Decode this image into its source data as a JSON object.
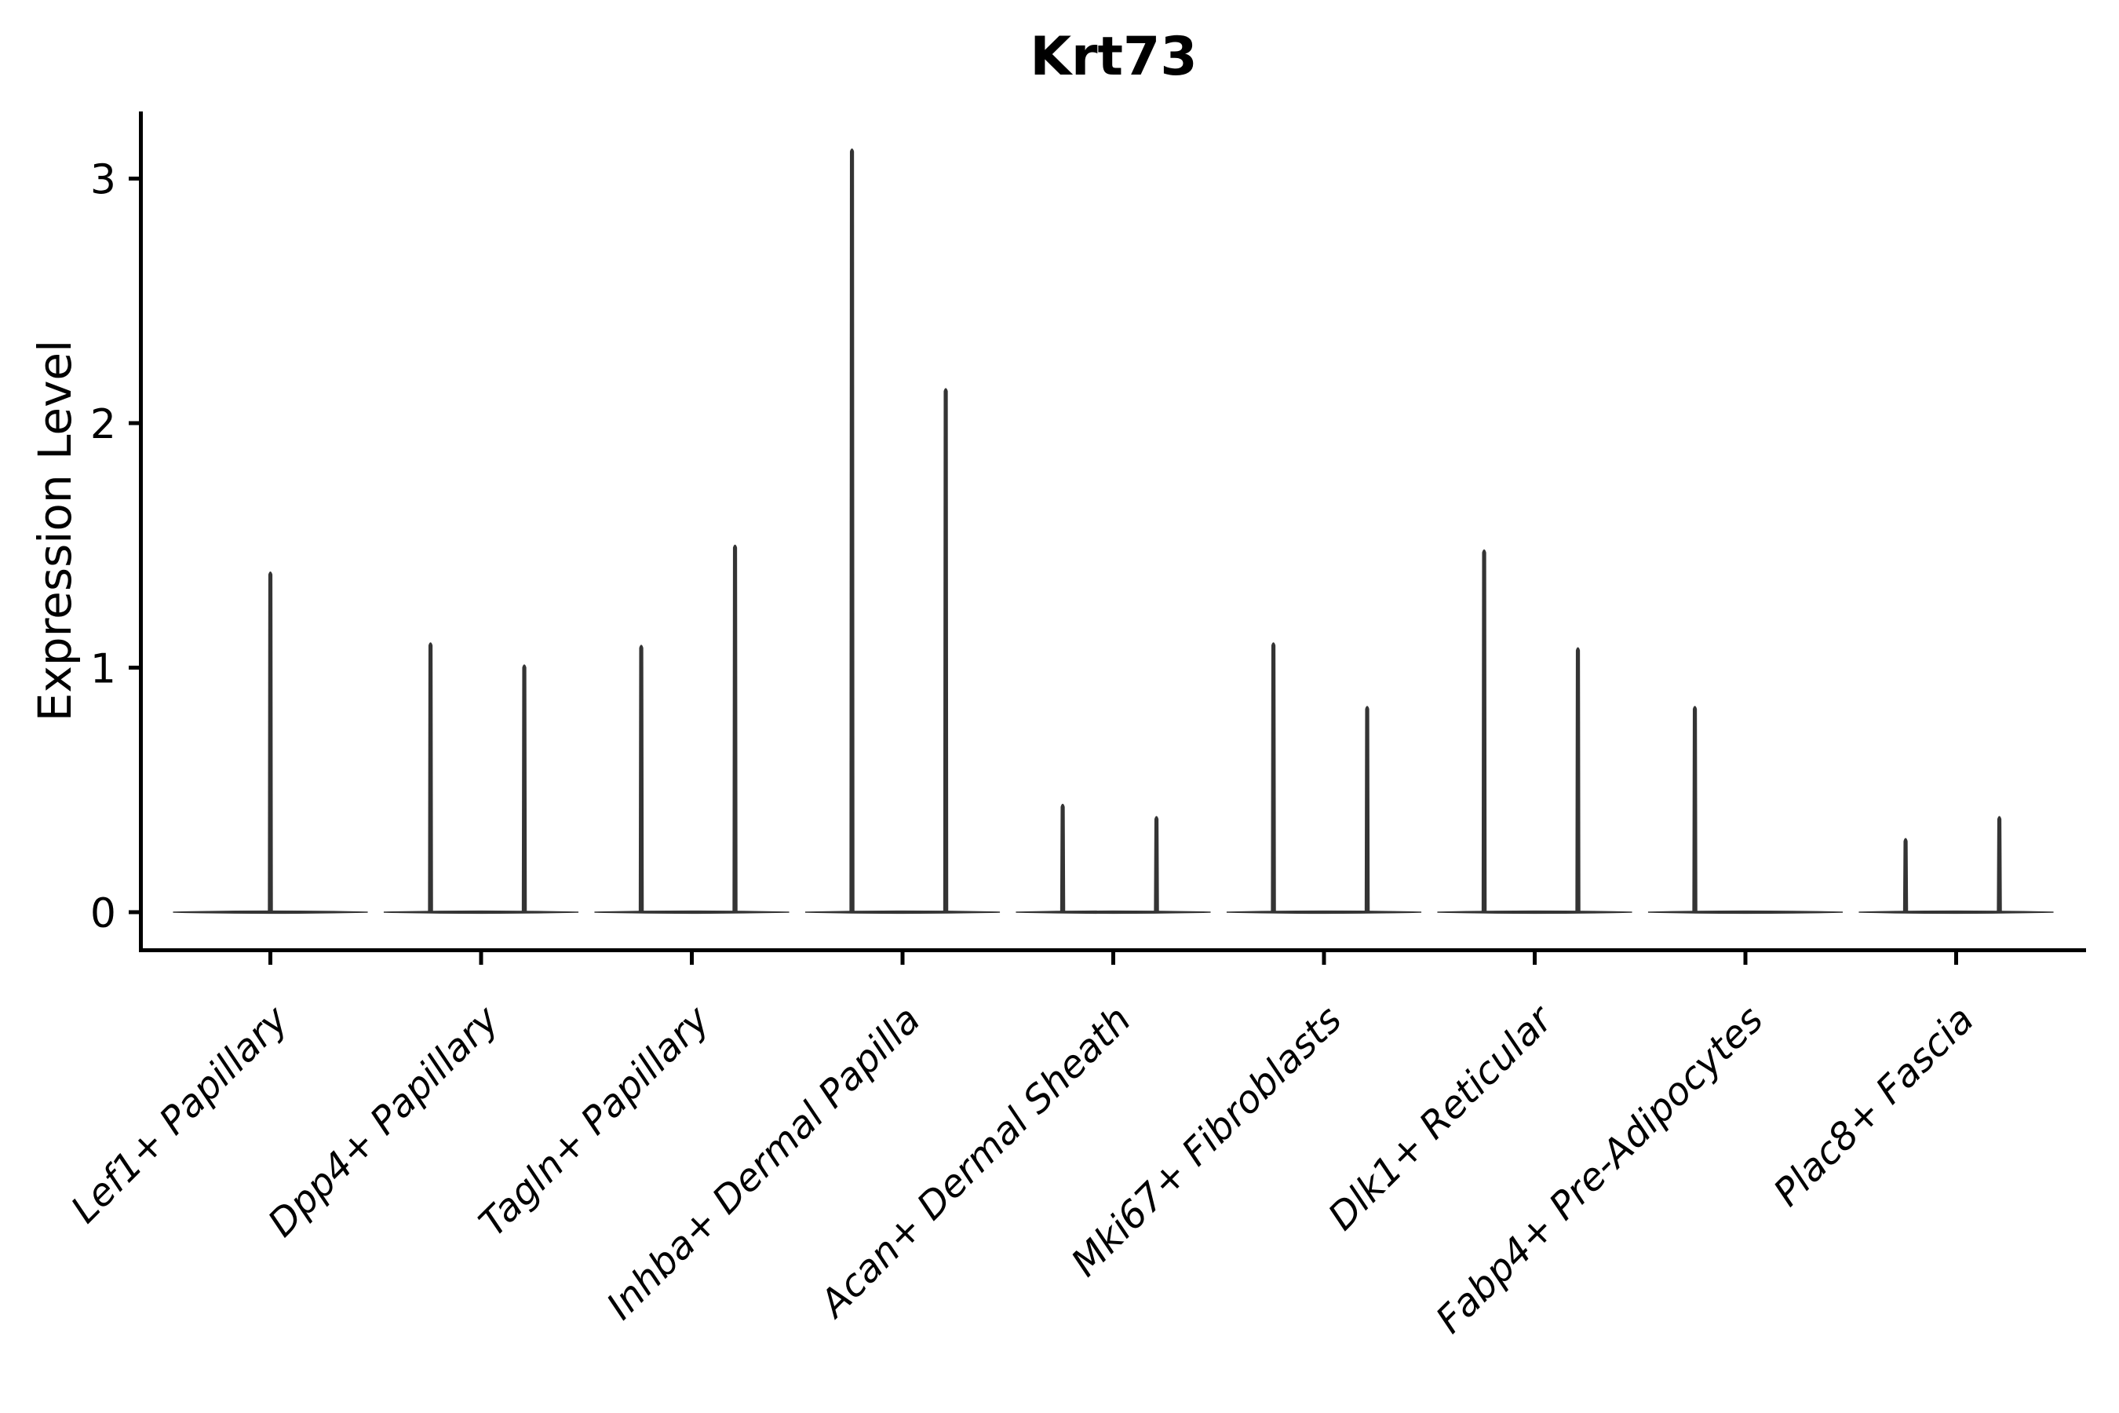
{
  "chart_data": {
    "type": "violin",
    "title": "Krt73",
    "ylabel": "Expression Level",
    "xlabel": "",
    "ytick_values": [
      0,
      1,
      2,
      3
    ],
    "ytick_labels": [
      "0",
      "1",
      "2",
      "3"
    ],
    "ylim": [
      -0.156,
      3.27
    ],
    "grid": false,
    "legend_position": "none",
    "x_tick_rotation": 45,
    "categories": [
      "Lef1+ Papillary",
      "Dpp4+ Papillary",
      "Tagln+ Papillary",
      "Inhba+ Dermal Papilla",
      "Acan+ Dermal Sheath",
      "Mki67+ Fibroblasts",
      "Dlk1+ Reticular",
      "Fabp4+ Pre-Adipocytes",
      "Plac8+ Fascia"
    ],
    "violins": [
      {
        "category": "Lef1+ Papillary",
        "spikes": [
          {
            "offset": 0.0,
            "max": 1.39
          }
        ]
      },
      {
        "category": "Dpp4+ Papillary",
        "spikes": [
          {
            "offset": -0.24,
            "max": 1.1
          },
          {
            "offset": 0.205,
            "max": 1.01
          }
        ]
      },
      {
        "category": "Tagln+ Papillary",
        "spikes": [
          {
            "offset": -0.24,
            "max": 1.09
          },
          {
            "offset": 0.205,
            "max": 1.5
          }
        ]
      },
      {
        "category": "Inhba+ Dermal Papilla",
        "spikes": [
          {
            "offset": -0.24,
            "max": 3.12
          },
          {
            "offset": 0.205,
            "max": 2.14
          }
        ]
      },
      {
        "category": "Acan+ Dermal Sheath",
        "spikes": [
          {
            "offset": -0.24,
            "max": 0.44
          },
          {
            "offset": 0.205,
            "max": 0.39
          }
        ]
      },
      {
        "category": "Mki67+ Fibroblasts",
        "spikes": [
          {
            "offset": -0.24,
            "max": 1.1
          },
          {
            "offset": 0.205,
            "max": 0.84
          }
        ]
      },
      {
        "category": "Dlk1+ Reticular",
        "spikes": [
          {
            "offset": -0.24,
            "max": 1.48
          },
          {
            "offset": 0.205,
            "max": 1.08
          }
        ]
      },
      {
        "category": "Fabp4+ Pre-Adipocytes",
        "spikes": [
          {
            "offset": -0.24,
            "max": 0.84
          }
        ]
      },
      {
        "category": "Plac8+ Fascia",
        "spikes": [
          {
            "offset": -0.24,
            "max": 0.3
          },
          {
            "offset": 0.205,
            "max": 0.39
          }
        ]
      }
    ],
    "colors": {
      "violin": "#343434",
      "axis": "#000000",
      "text": "#000000",
      "background": "#ffffff"
    }
  }
}
